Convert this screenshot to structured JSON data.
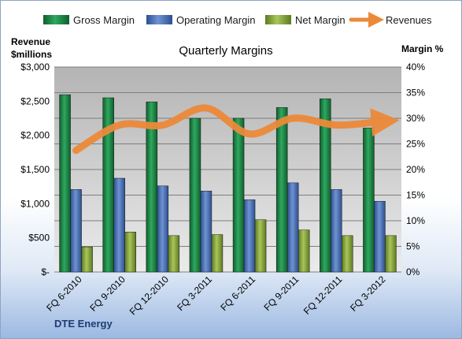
{
  "chart_data": {
    "type": "bar",
    "title": "Quarterly Margins",
    "company": "DTE Energy",
    "left_axis_title_lines": [
      "Revenue",
      "$millions"
    ],
    "right_axis_title": "Margin %",
    "categories": [
      "FQ 6-2010",
      "FQ 9-2010",
      "FQ 12-2010",
      "FQ 3-2011",
      "FQ 6-2011",
      "FQ 9-2011",
      "FQ 12-2011",
      "FQ 3-2012"
    ],
    "left_ticks": [
      "$-",
      "$500",
      "$1,000",
      "$1,500",
      "$2,000",
      "$2,500",
      "$3,000"
    ],
    "right_ticks": [
      "0%",
      "5%",
      "10%",
      "15%",
      "20%",
      "25%",
      "30%",
      "35%",
      "40%"
    ],
    "ylim_left": [
      0,
      3000
    ],
    "ylim_right": [
      0,
      40
    ],
    "series": [
      {
        "name": "Gross Margin",
        "type": "bar",
        "axis": "right",
        "color": "#1e8a4a",
        "values": [
          34.6,
          34.0,
          33.2,
          30.0,
          30.0,
          32.1,
          33.8,
          28.1
        ]
      },
      {
        "name": "Operating Margin",
        "type": "bar",
        "axis": "right",
        "color": "#4a72b8",
        "values": [
          16.1,
          18.3,
          16.8,
          15.8,
          14.1,
          17.4,
          16.1,
          13.8
        ]
      },
      {
        "name": "Net Margin",
        "type": "bar",
        "axis": "right",
        "color": "#8aab3c",
        "values": [
          4.9,
          7.8,
          7.1,
          7.3,
          10.2,
          8.2,
          7.1,
          7.1
        ]
      },
      {
        "name": "Revenues",
        "type": "line",
        "axis": "left",
        "color": "#ec8a3a",
        "values": [
          1780,
          2150,
          2150,
          2400,
          2020,
          2250,
          2150,
          2200
        ]
      }
    ],
    "grid": true,
    "legend_position": "top"
  }
}
